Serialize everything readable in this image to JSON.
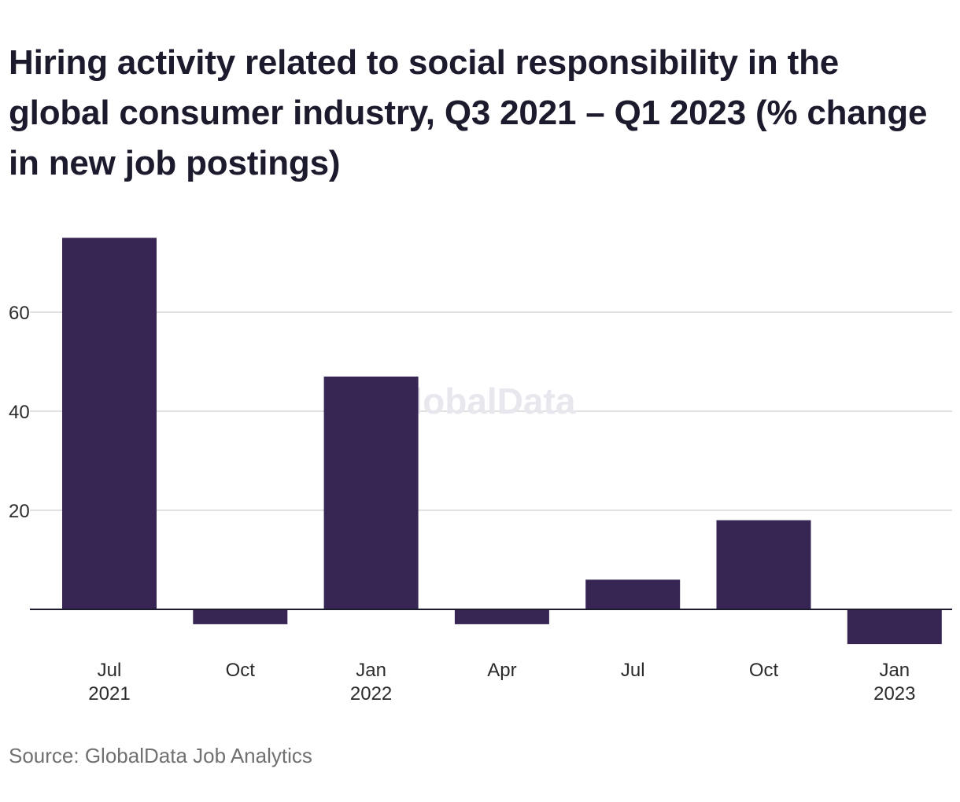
{
  "title": "Hiring activity related to social responsibility in the global consumer industry, Q3 2021 – Q1 2023 (% change in new job postings)",
  "source": "Source: GlobalData Job Analytics",
  "watermark": "GlobalData",
  "chart_data": {
    "type": "bar",
    "title": "Hiring activity related to social responsibility in the global consumer industry, Q3 2021 – Q1 2023 (% change in new job postings)",
    "categories": [
      [
        "Jul",
        "2021"
      ],
      [
        "Oct",
        ""
      ],
      [
        "Jan",
        "2022"
      ],
      [
        "Apr",
        ""
      ],
      [
        "Jul",
        ""
      ],
      [
        "Oct",
        ""
      ],
      [
        "Jan",
        "2023"
      ]
    ],
    "values": [
      75,
      -3,
      47,
      -3,
      6,
      18,
      -7
    ],
    "yticks": [
      20,
      40,
      60
    ],
    "ylim": [
      -10,
      80
    ],
    "xlabel": "",
    "ylabel": "",
    "grid": true,
    "legend": "none",
    "bar_color": "#372554",
    "grid_color": "#d6d6d6",
    "axis_color": "#1c1b2e"
  }
}
